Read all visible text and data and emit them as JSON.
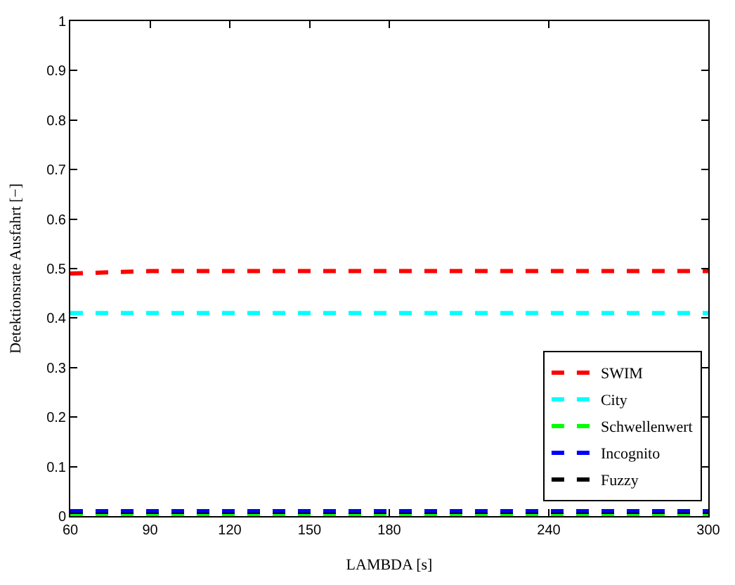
{
  "chart_data": {
    "type": "line",
    "xlabel": "LAMBDA [s]",
    "ylabel": "Detektionsrate Ausfahrt [−]",
    "x": [
      60,
      90,
      120,
      150,
      180,
      240,
      300
    ],
    "series": [
      {
        "name": "SWIM",
        "color": "#ff0000",
        "values": [
          0.49,
          0.495,
          0.495,
          0.495,
          0.495,
          0.495,
          0.495
        ]
      },
      {
        "name": "City",
        "color": "#00ffff",
        "values": [
          0.41,
          0.41,
          0.41,
          0.41,
          0.41,
          0.41,
          0.41
        ]
      },
      {
        "name": "Schwellenwert",
        "color": "#00ff00",
        "values": [
          0,
          0,
          0,
          0,
          0,
          0,
          0
        ]
      },
      {
        "name": "Incognito",
        "color": "#0000ff",
        "values": [
          0.01,
          0.01,
          0.01,
          0.01,
          0.01,
          0.01,
          0.01
        ]
      },
      {
        "name": "Fuzzy",
        "color": "#000000",
        "values": [
          0.003,
          0.003,
          0.003,
          0.003,
          0.003,
          0.003,
          0.003
        ]
      }
    ],
    "xlim": [
      60,
      300
    ],
    "xticks": [
      60,
      90,
      120,
      150,
      180,
      240,
      300
    ],
    "ylim": [
      0,
      1
    ],
    "yticks": [
      0,
      0.1,
      0.2,
      0.3,
      0.4,
      0.5,
      0.6,
      0.7,
      0.8,
      0.9,
      1
    ],
    "legend": "bottom right",
    "marker": "none",
    "line_style": "dashed"
  }
}
